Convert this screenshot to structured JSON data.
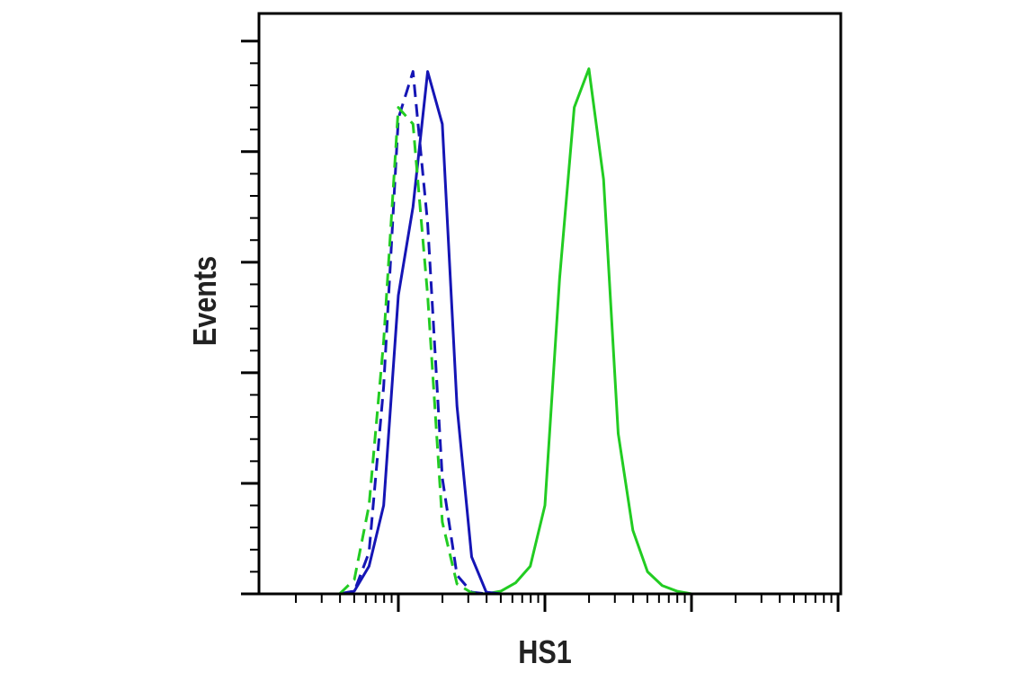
{
  "chart_data": {
    "type": "line",
    "x_label": "HS1",
    "y_label": "Events",
    "x_log": true,
    "x": [
      12.6,
      15.8,
      20.0,
      25.1,
      31.6,
      39.8,
      50.1,
      63.1,
      79.4,
      100,
      125.9,
      158.5,
      199.5,
      251.2,
      316.2,
      398.1,
      501.2,
      631,
      794.3,
      1000,
      1259,
      1585,
      1995,
      2512,
      3162,
      3981,
      5012,
      6310,
      7943,
      10000,
      12589,
      15849,
      19953,
      25119,
      31623,
      39811,
      50119,
      63096,
      79433,
      100000
    ],
    "xlim": [
      11.2,
      104300
    ],
    "xticks": [
      100,
      1000,
      10000,
      100000
    ],
    "xminorticks": [
      20,
      30,
      40,
      50,
      60,
      70,
      80,
      90,
      200,
      300,
      400,
      500,
      600,
      700,
      800,
      900,
      2000,
      3000,
      4000,
      5000,
      6000,
      7000,
      8000,
      9000,
      20000,
      30000,
      40000,
      50000,
      60000,
      70000,
      80000,
      90000
    ],
    "ylim": [
      0,
      105
    ],
    "yticks": [
      0,
      20,
      40,
      60,
      80,
      100
    ],
    "yminorticks": [
      4,
      8,
      12,
      16,
      24,
      28,
      32,
      36,
      44,
      48,
      52,
      56,
      64,
      68,
      72,
      76,
      84,
      88,
      92,
      96
    ],
    "series": [
      {
        "color": "#22cc22",
        "dashed": false,
        "values": [
          0,
          0,
          0,
          0,
          0,
          0,
          0,
          0,
          0,
          0,
          0,
          0,
          0,
          0,
          0,
          0,
          0.5,
          2,
          5,
          16,
          57,
          88,
          95,
          75,
          29,
          11.5,
          4,
          1.5,
          0.5,
          0,
          0,
          0,
          0,
          0,
          0,
          0,
          0,
          0,
          0,
          0
        ]
      },
      {
        "color": "#1515b5",
        "dashed": false,
        "values": [
          0,
          0,
          0,
          0,
          0,
          0,
          0.5,
          5,
          16,
          54,
          70,
          94.5,
          85,
          34,
          6.7,
          0.3,
          0,
          0,
          0,
          0,
          0,
          0,
          0,
          0,
          0,
          0,
          0,
          0,
          0,
          0,
          0,
          0,
          0,
          0,
          0,
          0,
          0,
          0,
          0,
          0
        ]
      },
      {
        "color": "#1515b5",
        "dashed": true,
        "values": [
          null,
          null,
          null,
          null,
          null,
          0,
          0.5,
          7.5,
          37.5,
          86,
          94.5,
          67,
          21,
          3.4,
          0.3,
          0,
          null,
          null,
          null,
          null,
          null,
          null,
          null,
          null,
          null,
          null,
          null,
          null,
          null,
          null,
          null,
          null,
          null,
          null,
          null,
          null,
          null,
          null,
          null,
          null
        ]
      },
      {
        "color": "#22cc22",
        "dashed": true,
        "values": [
          null,
          null,
          null,
          null,
          null,
          0,
          2.6,
          16,
          45.7,
          88,
          85,
          54,
          13,
          1.8,
          0.2,
          0,
          null,
          null,
          null,
          null,
          null,
          null,
          null,
          null,
          null,
          null,
          null,
          null,
          null,
          null,
          null,
          null,
          null,
          null,
          null,
          null,
          null,
          null,
          null,
          null
        ]
      }
    ]
  }
}
